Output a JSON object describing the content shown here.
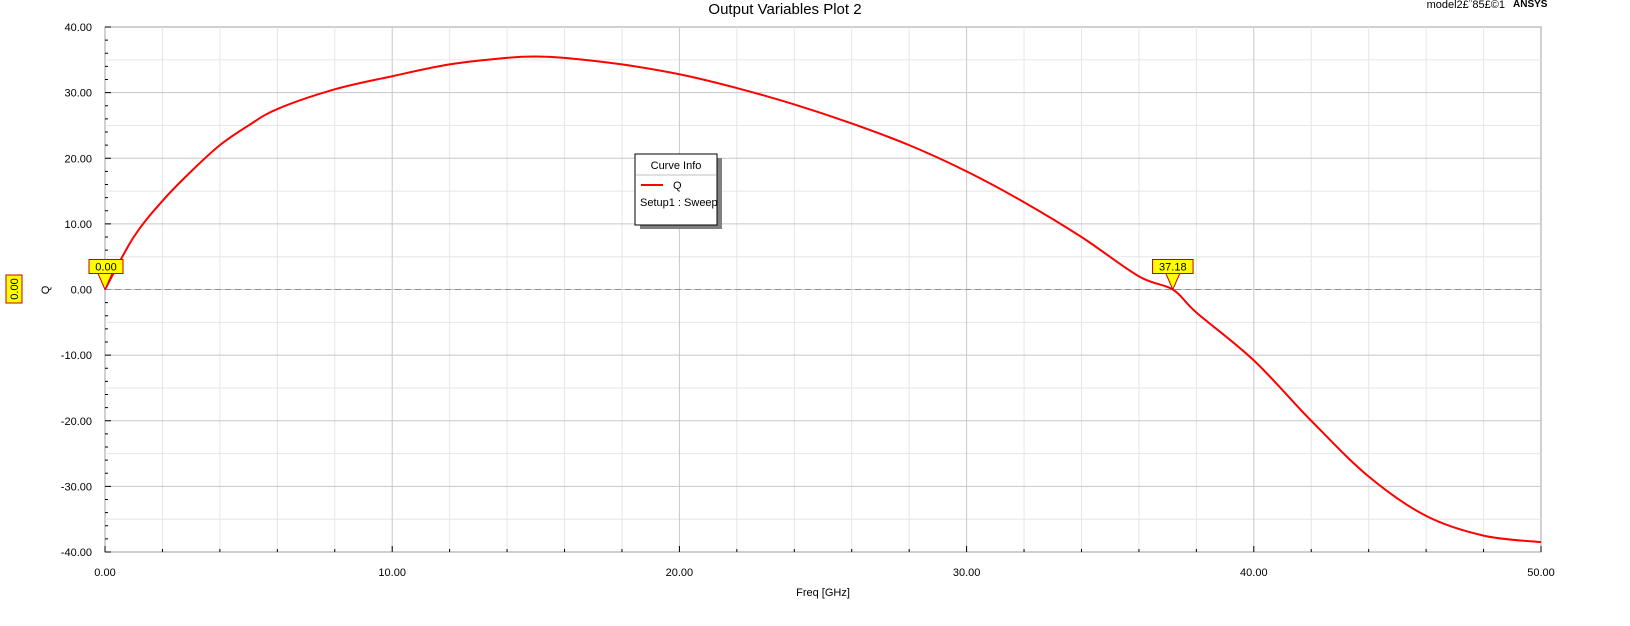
{
  "header": {
    "title": "Output Variables Plot 2",
    "design_name": "model2£¨85£©1",
    "brand": "ANSYS"
  },
  "legend": {
    "title": "Curve Info",
    "trace_name": "Q",
    "trace_source": "Setup1 : Sweep"
  },
  "y_cursor_label": "0.00",
  "colors": {
    "curve": "#ff0000",
    "grid_major": "#c8c8c8",
    "grid_minor": "#e6e6e6",
    "marker_fill": "#ffff00",
    "marker_border": "#cc0000",
    "cursor_line": "#909090"
  },
  "chart_data": {
    "type": "line",
    "title": "Output Variables Plot 2",
    "xlabel": "Freq [GHz]",
    "ylabel": "Q",
    "xlim": [
      0,
      50
    ],
    "ylim": [
      -40,
      40
    ],
    "x_ticks": [
      "0.00",
      "10.00",
      "20.00",
      "30.00",
      "40.00",
      "50.00"
    ],
    "y_ticks": [
      "40.00",
      "30.00",
      "20.00",
      "10.00",
      "0.00",
      "-10.00",
      "-20.00",
      "-30.00",
      "-40.00"
    ],
    "grid": true,
    "legend_position": "center",
    "series": [
      {
        "name": "Q",
        "x": [
          0,
          1,
          2,
          3,
          4,
          5,
          6,
          8,
          10,
          12,
          14,
          15,
          16,
          18,
          20,
          22,
          24,
          26,
          28,
          30,
          32,
          34,
          36,
          37.18,
          38,
          40,
          42,
          44,
          46,
          48,
          50
        ],
        "values": [
          0,
          8,
          13.5,
          18,
          22,
          25,
          27.5,
          30.5,
          32.5,
          34.3,
          35.3,
          35.5,
          35.3,
          34.3,
          32.8,
          30.7,
          28.2,
          25.3,
          22,
          18,
          13.3,
          8,
          2,
          0,
          -3.5,
          -10.8,
          -20,
          -28.5,
          -34.5,
          -37.5,
          -38.5
        ]
      }
    ],
    "markers": [
      {
        "x": 0.0,
        "y": 0,
        "label": "0.00"
      },
      {
        "x": 37.18,
        "y": 0,
        "label": "37.18"
      }
    ]
  }
}
